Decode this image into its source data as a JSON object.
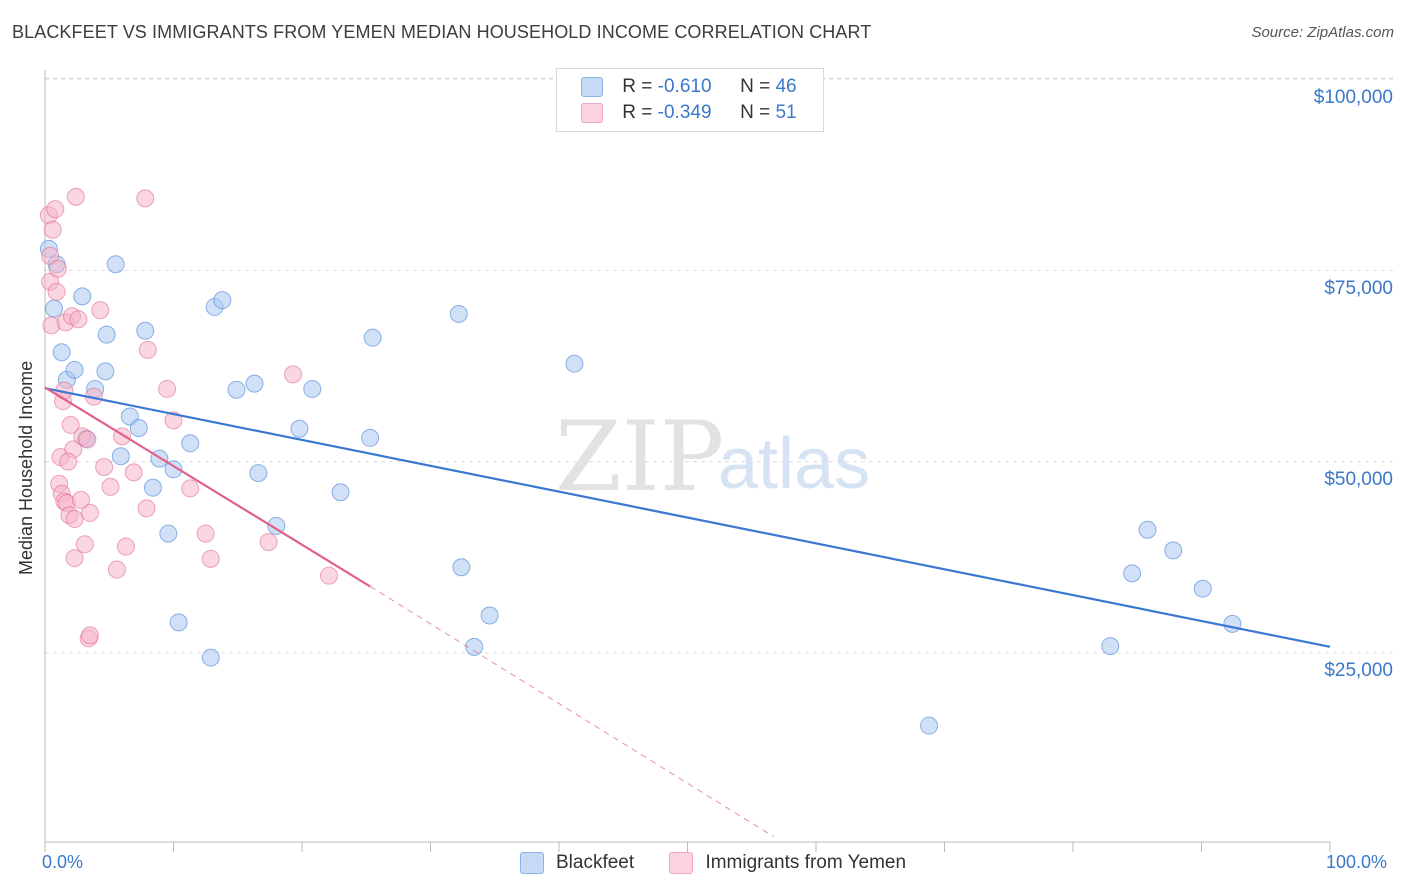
{
  "header": {
    "title": "BLACKFEET VS IMMIGRANTS FROM YEMEN MEDIAN HOUSEHOLD INCOME CORRELATION CHART",
    "source": "Source: ZipAtlas.com"
  },
  "watermark": {
    "zip": "ZIP",
    "atlas": "atlas"
  },
  "legend": {
    "rows": [
      {
        "r_label": "R = ",
        "r_value": "-0.610",
        "n_label": "N = ",
        "n_value": "46",
        "color": "#a9c8f0"
      },
      {
        "r_label": "R = ",
        "r_value": "-0.349",
        "n_label": "N = ",
        "n_value": "51",
        "color": "#f5b5c8"
      }
    ]
  },
  "chart_data": {
    "type": "scatter",
    "title": "BLACKFEET VS IMMIGRANTS FROM YEMEN MEDIAN HOUSEHOLD INCOME CORRELATION CHART",
    "xlabel": "",
    "ylabel": "Median Household Income",
    "xlim": [
      0,
      100
    ],
    "ylim": [
      0,
      105000
    ],
    "x_tick_labels": [
      "0.0%",
      "100.0%"
    ],
    "y_ticks": [
      25000,
      50000,
      75000,
      100000
    ],
    "y_tick_labels": [
      "$25,000",
      "$50,000",
      "$75,000",
      "$100,000"
    ],
    "grid": true,
    "legend_position": "top-center",
    "series": [
      {
        "name": "Blackfeet",
        "color": "#3a78d4",
        "fill": "#a9c8f0",
        "trend": {
          "x": [
            0,
            100
          ],
          "y": [
            59600,
            25800
          ],
          "dashed_extension": false
        },
        "points": [
          [
            0.3,
            77800
          ],
          [
            0.7,
            70000
          ],
          [
            1.3,
            64300
          ],
          [
            1.7,
            60700
          ],
          [
            2.3,
            62000
          ],
          [
            2.9,
            71600
          ],
          [
            3.2,
            53000
          ],
          [
            3.9,
            59500
          ],
          [
            4.7,
            61800
          ],
          [
            4.8,
            66600
          ],
          [
            5.5,
            75800
          ],
          [
            5.9,
            50700
          ],
          [
            6.6,
            55900
          ],
          [
            7.3,
            54400
          ],
          [
            7.8,
            67100
          ],
          [
            8.4,
            46600
          ],
          [
            8.9,
            50400
          ],
          [
            9.6,
            40600
          ],
          [
            10.0,
            49000
          ],
          [
            10.4,
            29000
          ],
          [
            11.3,
            52400
          ],
          [
            12.9,
            24400
          ],
          [
            13.2,
            70200
          ],
          [
            13.8,
            71100
          ],
          [
            14.9,
            59400
          ],
          [
            16.3,
            60200
          ],
          [
            16.6,
            48500
          ],
          [
            18.0,
            41600
          ],
          [
            19.8,
            54300
          ],
          [
            20.8,
            59500
          ],
          [
            23.0,
            46000
          ],
          [
            25.3,
            53100
          ],
          [
            25.5,
            66200
          ],
          [
            32.2,
            69300
          ],
          [
            32.4,
            36200
          ],
          [
            33.4,
            25800
          ],
          [
            34.6,
            29900
          ],
          [
            41.2,
            62800
          ],
          [
            68.8,
            15500
          ],
          [
            82.9,
            25900
          ],
          [
            84.6,
            35400
          ],
          [
            85.8,
            41100
          ],
          [
            87.8,
            38400
          ],
          [
            90.1,
            33400
          ],
          [
            92.4,
            28800
          ],
          [
            0.9,
            75800
          ]
        ]
      },
      {
        "name": "Immigrants from Yemen",
        "color": "#e0608a",
        "fill": "#f5b5c8",
        "trend": {
          "x": [
            0,
            25.3
          ],
          "y": [
            59700,
            33700
          ],
          "dashed_to": [
            56.7,
            1000
          ]
        },
        "points": [
          [
            0.3,
            82200
          ],
          [
            0.4,
            76900
          ],
          [
            0.4,
            73500
          ],
          [
            0.5,
            67800
          ],
          [
            0.6,
            80300
          ],
          [
            0.8,
            83000
          ],
          [
            0.9,
            72200
          ],
          [
            1.0,
            75200
          ],
          [
            1.1,
            47100
          ],
          [
            1.2,
            50600
          ],
          [
            1.3,
            45800
          ],
          [
            1.4,
            57900
          ],
          [
            1.5,
            59300
          ],
          [
            1.6,
            68200
          ],
          [
            1.5,
            44800
          ],
          [
            1.7,
            44600
          ],
          [
            1.9,
            43000
          ],
          [
            2.0,
            54800
          ],
          [
            2.1,
            69000
          ],
          [
            2.2,
            51600
          ],
          [
            2.3,
            42500
          ],
          [
            2.3,
            37400
          ],
          [
            2.4,
            84600
          ],
          [
            2.6,
            68600
          ],
          [
            2.9,
            53300
          ],
          [
            3.1,
            39200
          ],
          [
            3.3,
            52900
          ],
          [
            3.4,
            26900
          ],
          [
            3.5,
            27300
          ],
          [
            3.5,
            43300
          ],
          [
            3.8,
            58500
          ],
          [
            4.3,
            69800
          ],
          [
            4.6,
            49300
          ],
          [
            5.1,
            46700
          ],
          [
            5.6,
            35900
          ],
          [
            6.0,
            53300
          ],
          [
            6.3,
            38900
          ],
          [
            6.9,
            48600
          ],
          [
            7.8,
            84400
          ],
          [
            7.9,
            43900
          ],
          [
            8.0,
            64600
          ],
          [
            9.5,
            59500
          ],
          [
            10.0,
            55400
          ],
          [
            11.3,
            46500
          ],
          [
            12.5,
            40600
          ],
          [
            12.9,
            37300
          ],
          [
            17.4,
            39500
          ],
          [
            19.3,
            61400
          ],
          [
            22.1,
            35100
          ],
          [
            1.8,
            50000
          ],
          [
            2.8,
            45000
          ]
        ]
      }
    ]
  },
  "bottom_legend": {
    "items": [
      {
        "label": "Blackfeet",
        "color": "#a9c8f0",
        "border": "#7aa7e0"
      },
      {
        "label": "Immigrants from Yemen",
        "color": "#f9c9d7",
        "border": "#ee9ab5"
      }
    ]
  }
}
